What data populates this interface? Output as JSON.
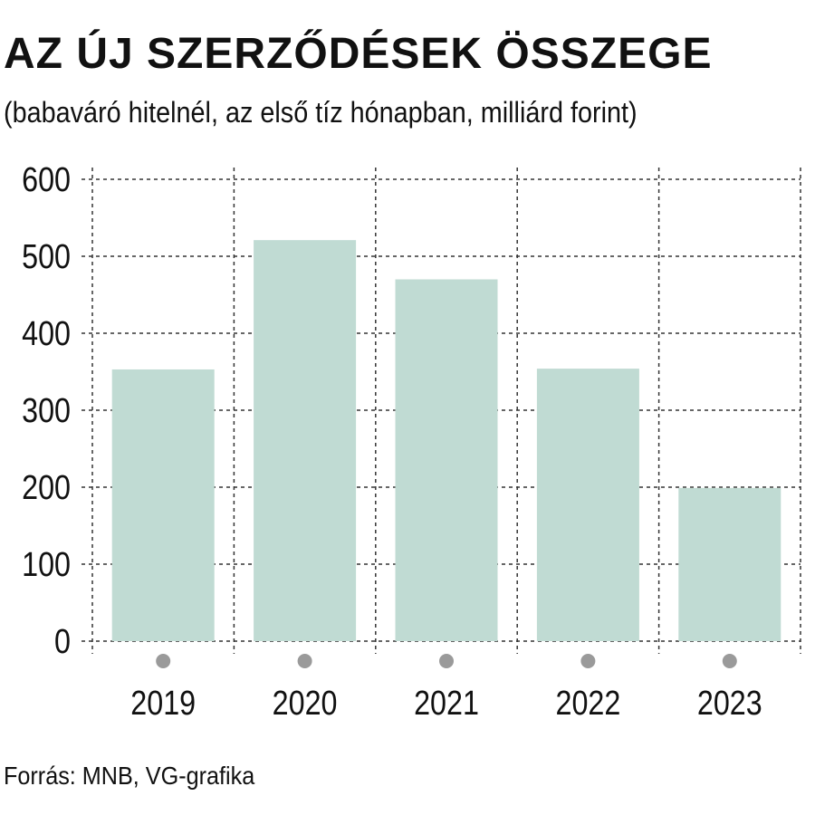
{
  "title": "AZ ÚJ SZERZŐDÉSEK ÖSSZEGE",
  "subtitle": "(babaváró hitelnél, az első tíz hónapban, milliárd forint)",
  "source": "Forrás: MNB, VG-grafika",
  "colors": {
    "bar": "#c0dbd3",
    "grid": "#333333",
    "dot": "#9a9a9a"
  },
  "chart_data": {
    "type": "bar",
    "title": "AZ ÚJ SZERZŐDÉSEK ÖSSZEGE",
    "subtitle": "(babaváró hitelnél, az első tíz hónapban, milliárd forint)",
    "categories": [
      "2019",
      "2020",
      "2021",
      "2022",
      "2023"
    ],
    "values": [
      353,
      521,
      470,
      354,
      199
    ],
    "xlabel": "",
    "ylabel": "",
    "ylim": [
      0,
      600
    ],
    "yticks": [
      0,
      100,
      200,
      300,
      400,
      500,
      600
    ],
    "grid": true,
    "legend": "none"
  }
}
